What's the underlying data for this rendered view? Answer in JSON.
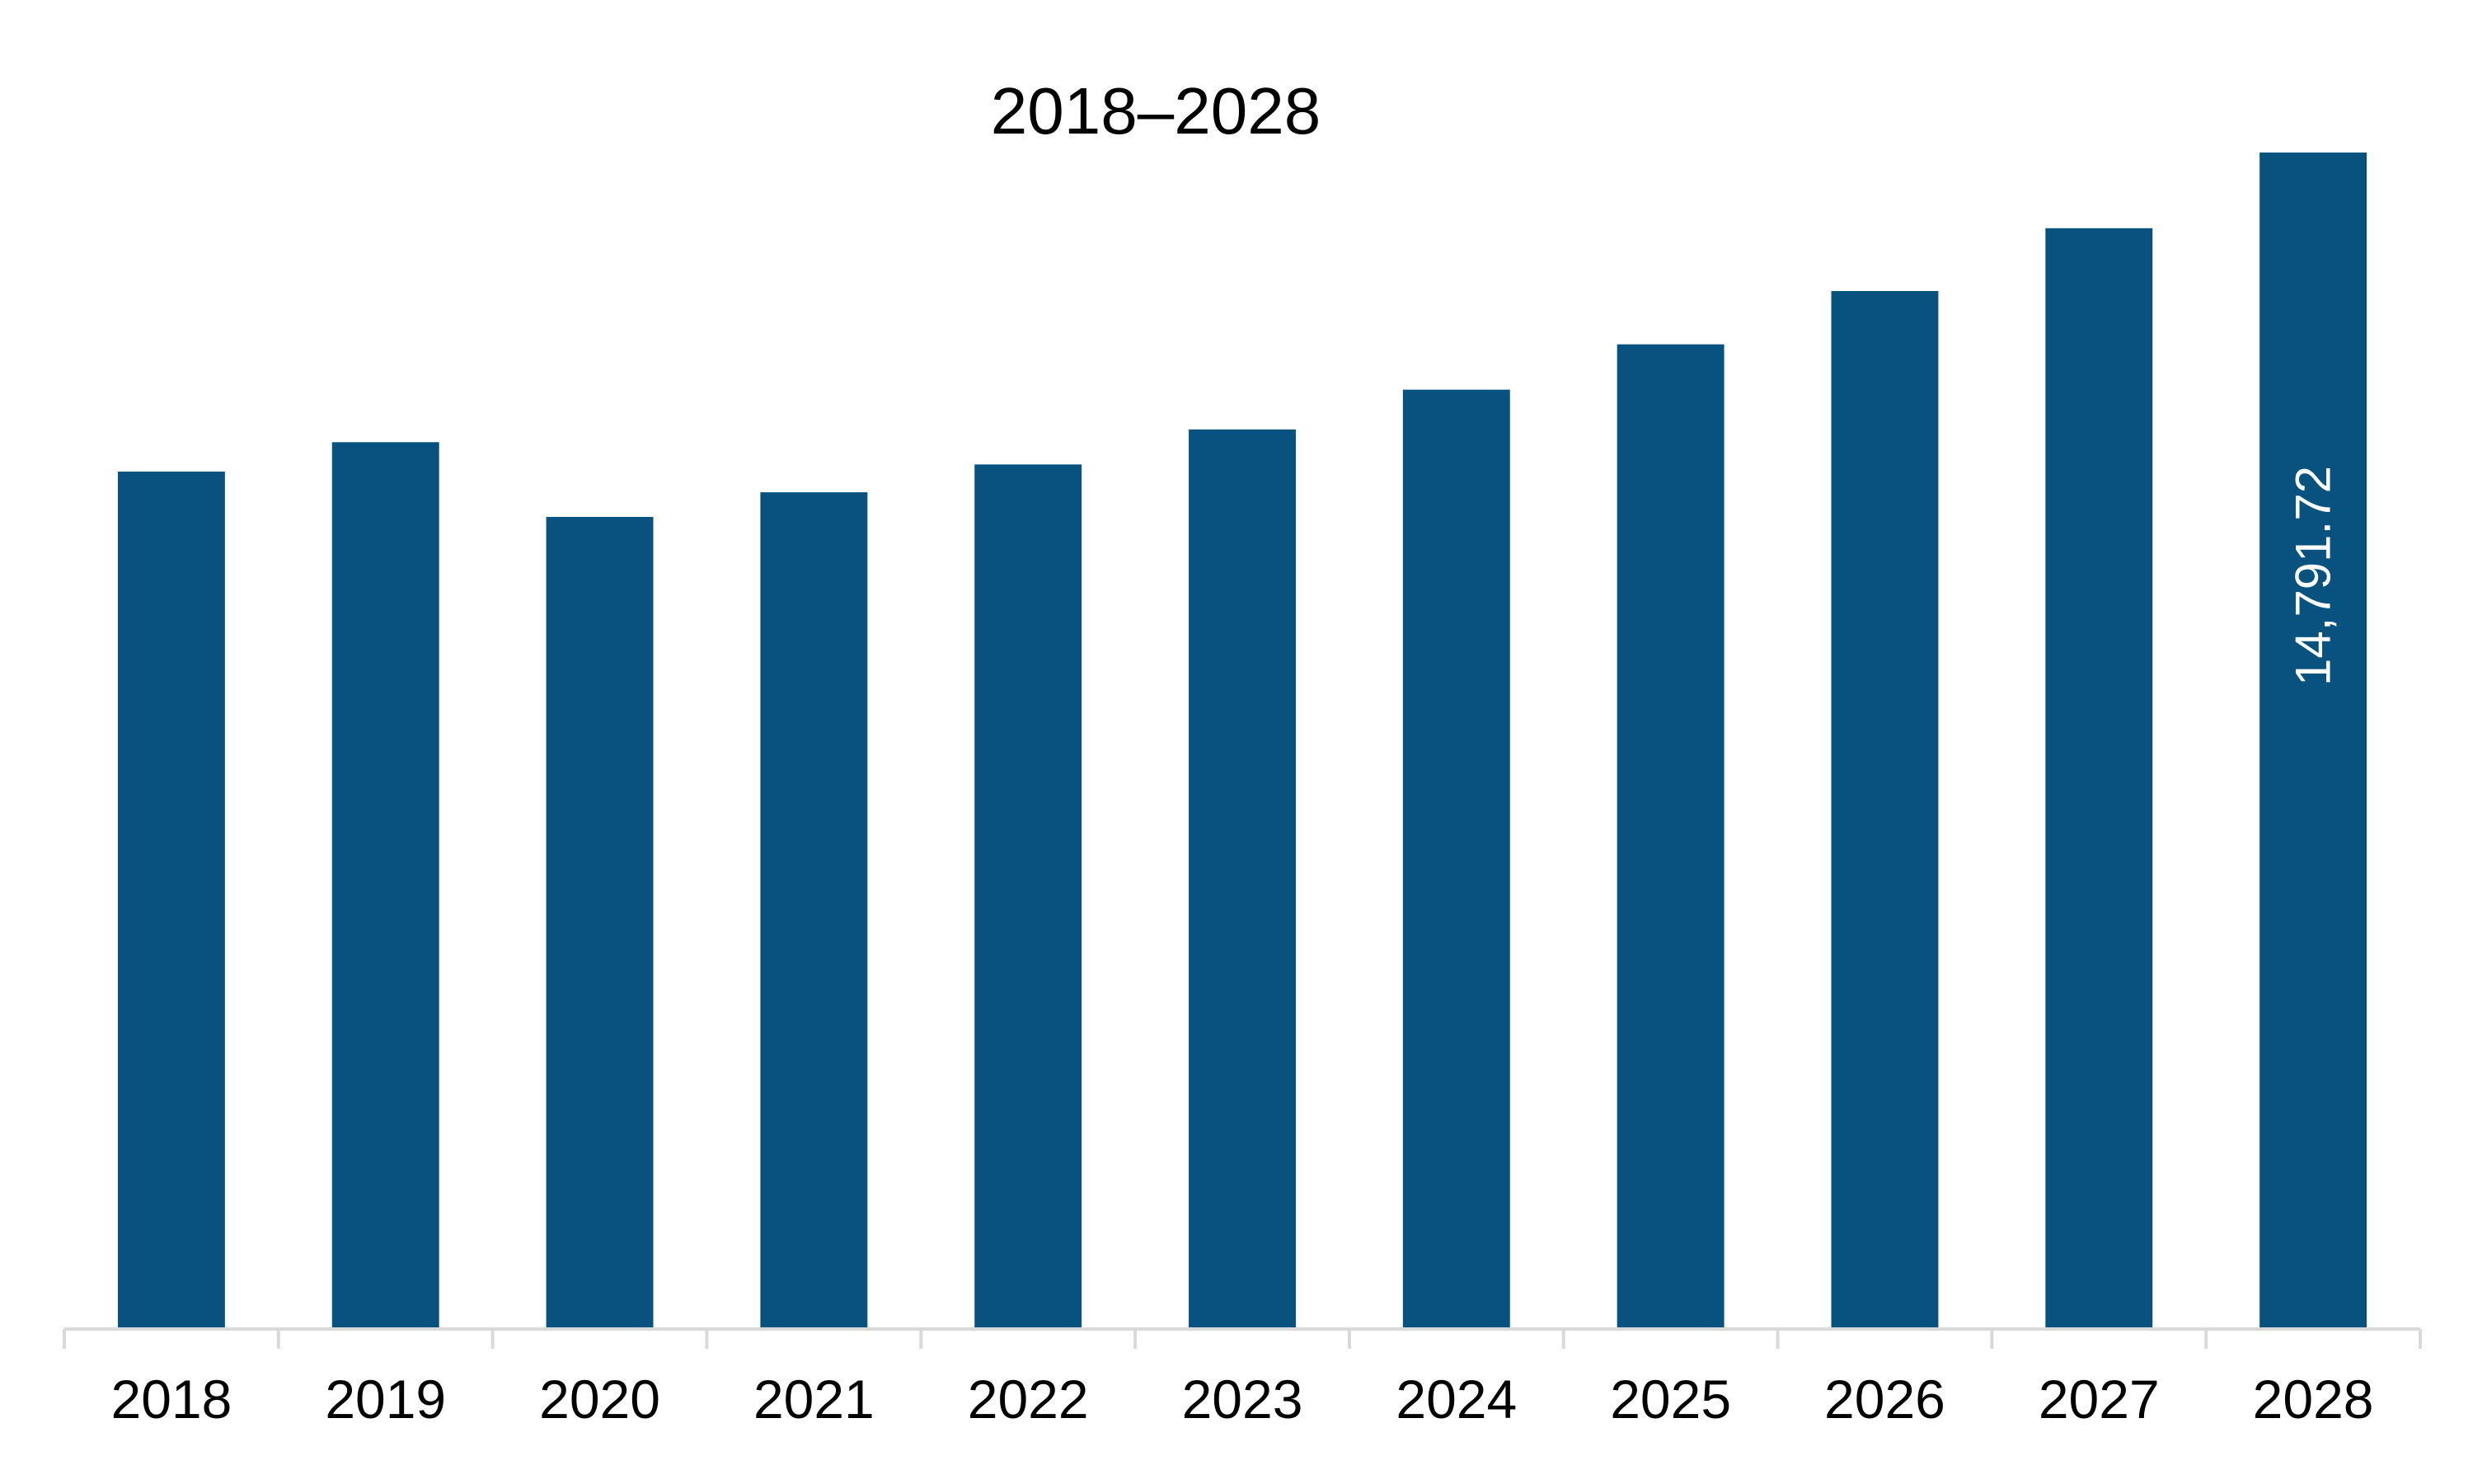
{
  "chart_data": {
    "type": "bar",
    "title": "2018–2028",
    "xlabel": "",
    "ylabel": "",
    "categories": [
      "2018",
      "2019",
      "2020",
      "2021",
      "2022",
      "2023",
      "2024",
      "2025",
      "2026",
      "2027",
      "2028"
    ],
    "values": [
      10780,
      11150,
      10210,
      10520,
      10870,
      11310,
      11810,
      12380,
      13050,
      13840,
      14791.72
    ],
    "data_labels": [
      "",
      "",
      "",
      "",
      "",
      "",
      "",
      "",
      "",
      "",
      "14,791.72"
    ],
    "ylim": [
      0,
      14791.72
    ],
    "grid": false,
    "legend": "none",
    "bar_color": "#08527f",
    "axis_color": "#d9d9d9"
  }
}
